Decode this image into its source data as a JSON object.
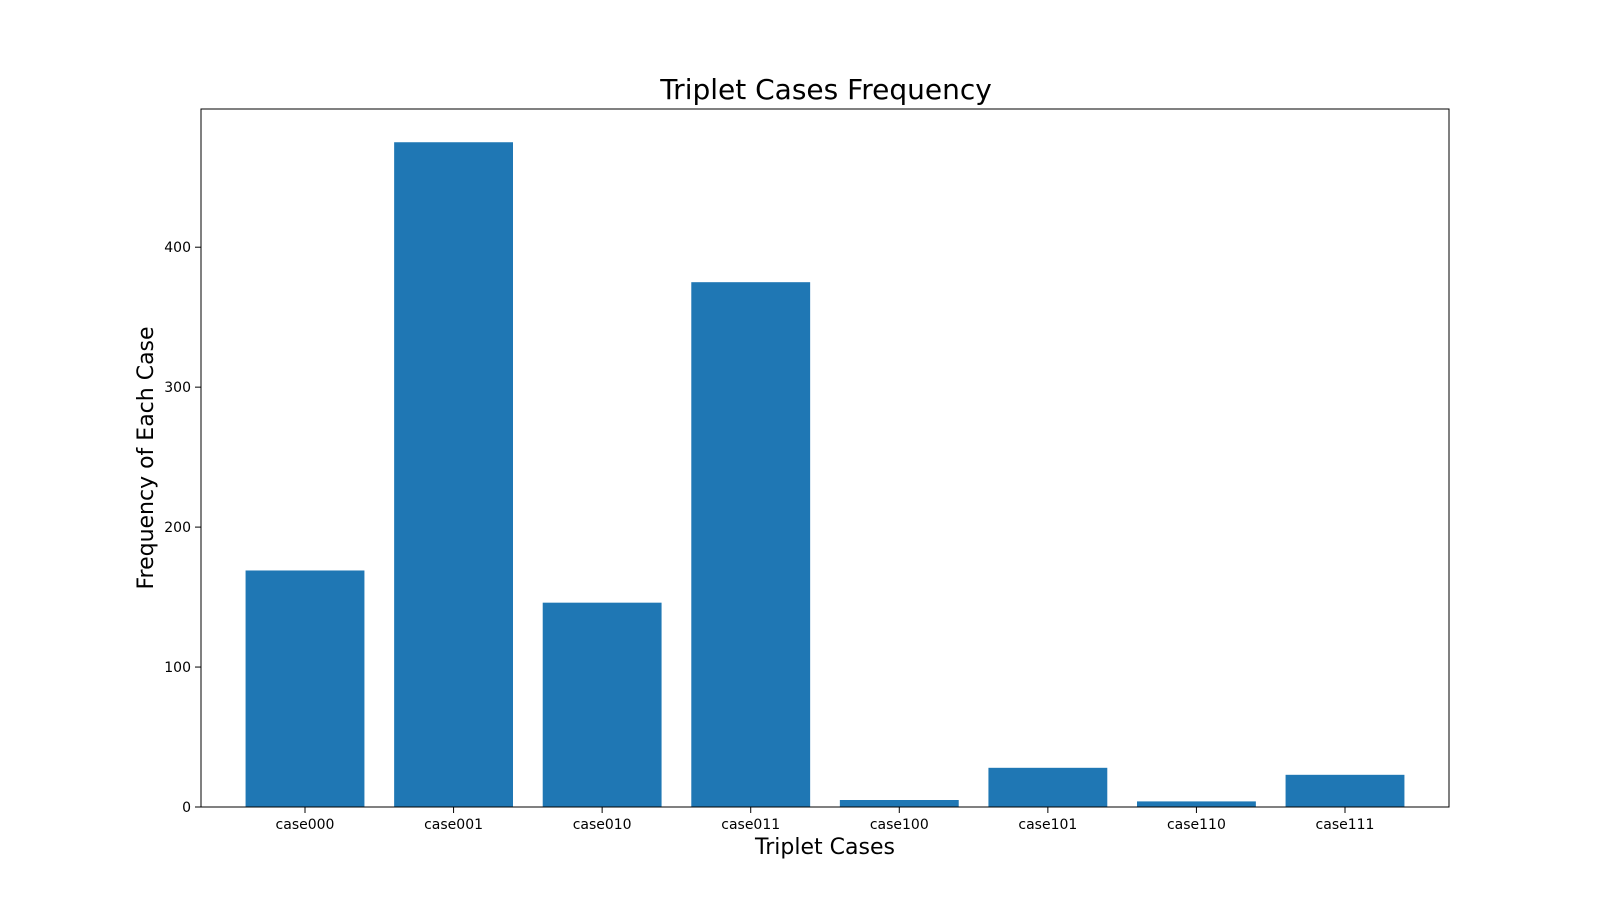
{
  "chart_data": {
    "type": "bar",
    "title": "Triplet Cases Frequency",
    "xlabel": "Triplet Cases",
    "ylabel": "Frequency of Each Case",
    "categories": [
      "case000",
      "case001",
      "case010",
      "case011",
      "case100",
      "case101",
      "case110",
      "case111"
    ],
    "values": [
      169,
      475,
      146,
      375,
      5,
      28,
      4,
      23
    ],
    "ylim": [
      0,
      498.75
    ],
    "yticks": [
      0,
      100,
      200,
      300,
      400
    ],
    "grid": false,
    "legend": "none",
    "bar_color": "#1f77b4"
  }
}
